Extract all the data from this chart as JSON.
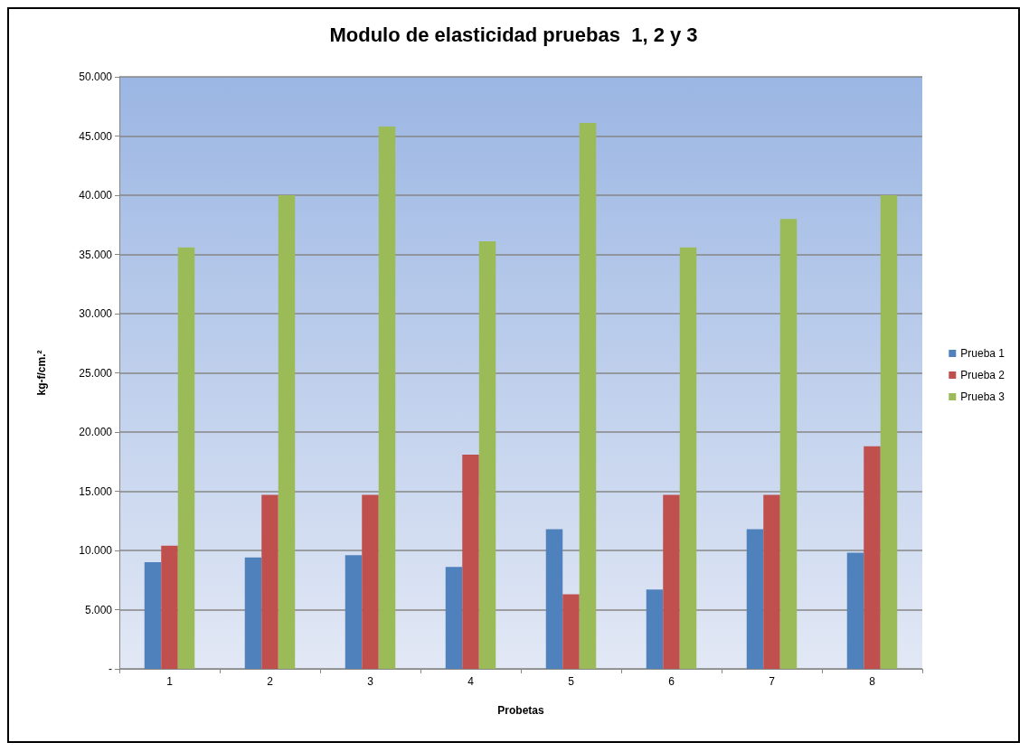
{
  "chart_data": {
    "type": "bar",
    "title": "Modulo de elasticidad pruebas  1, 2 y 3",
    "xlabel": "Probetas",
    "ylabel": "kg-f/cm.²",
    "categories": [
      "1",
      "2",
      "3",
      "4",
      "5",
      "6",
      "7",
      "8"
    ],
    "series": [
      {
        "name": "Prueba 1",
        "color": "#4f81bd",
        "values": [
          9000,
          9400,
          9600,
          8600,
          11800,
          6700,
          11800,
          9800
        ]
      },
      {
        "name": "Prueba 2",
        "color": "#c0504d",
        "values": [
          10400,
          14700,
          14700,
          18100,
          6300,
          14700,
          14700,
          18800
        ]
      },
      {
        "name": "Prueba 3",
        "color": "#9bbb59",
        "values": [
          35600,
          40000,
          45800,
          36100,
          46100,
          35600,
          38000,
          40000
        ]
      }
    ],
    "ylim": [
      0,
      50000
    ],
    "yticks": [
      {
        "value": 0,
        "label": "-"
      },
      {
        "value": 5000,
        "label": "5.000"
      },
      {
        "value": 10000,
        "label": "10.000"
      },
      {
        "value": 15000,
        "label": "15.000"
      },
      {
        "value": 20000,
        "label": "20.000"
      },
      {
        "value": 25000,
        "label": "25.000"
      },
      {
        "value": 30000,
        "label": "30.000"
      },
      {
        "value": 35000,
        "label": "35.000"
      },
      {
        "value": 40000,
        "label": "40.000"
      },
      {
        "value": 45000,
        "label": "45.000"
      },
      {
        "value": 50000,
        "label": "50.000"
      }
    ],
    "grid": "y",
    "legend": "right"
  }
}
